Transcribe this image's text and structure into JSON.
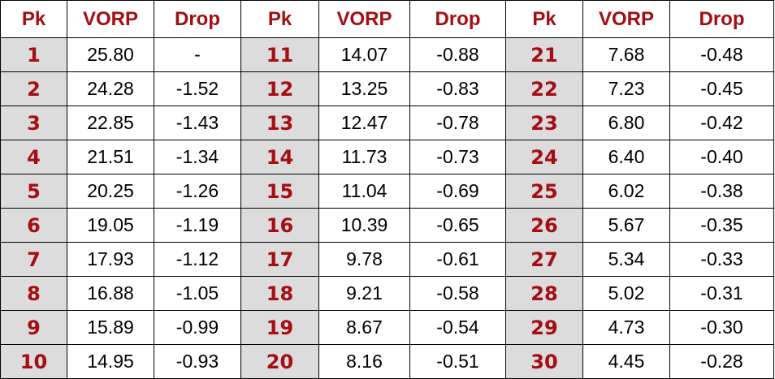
{
  "table": {
    "header": [
      "Pk",
      "VORP",
      "Drop",
      "Pk",
      "VORP",
      "Drop",
      "Pk",
      "VORP",
      "Drop"
    ],
    "rows": [
      [
        "1",
        "25.80",
        "-",
        "11",
        "14.07",
        "-0.88",
        "21",
        "7.68",
        "-0.48"
      ],
      [
        "2",
        "24.28",
        "-1.52",
        "12",
        "13.25",
        "-0.83",
        "22",
        "7.23",
        "-0.45"
      ],
      [
        "3",
        "22.85",
        "-1.43",
        "13",
        "12.47",
        "-0.78",
        "23",
        "6.80",
        "-0.42"
      ],
      [
        "4",
        "21.51",
        "-1.34",
        "14",
        "11.73",
        "-0.73",
        "24",
        "6.40",
        "-0.40"
      ],
      [
        "5",
        "20.25",
        "-1.26",
        "15",
        "11.04",
        "-0.69",
        "25",
        "6.02",
        "-0.38"
      ],
      [
        "6",
        "19.05",
        "-1.19",
        "16",
        "10.39",
        "-0.65",
        "26",
        "5.67",
        "-0.35"
      ],
      [
        "7",
        "17.93",
        "-1.12",
        "17",
        "9.78",
        "-0.61",
        "27",
        "5.34",
        "-0.33"
      ],
      [
        "8",
        "16.88",
        "-1.05",
        "18",
        "9.21",
        "-0.58",
        "28",
        "5.02",
        "-0.31"
      ],
      [
        "9",
        "15.89",
        "-0.99",
        "19",
        "8.67",
        "-0.54",
        "29",
        "4.73",
        "-0.30"
      ],
      [
        "10",
        "14.95",
        "-0.93",
        "20",
        "8.16",
        "-0.51",
        "30",
        "4.45",
        "-0.28"
      ]
    ]
  }
}
